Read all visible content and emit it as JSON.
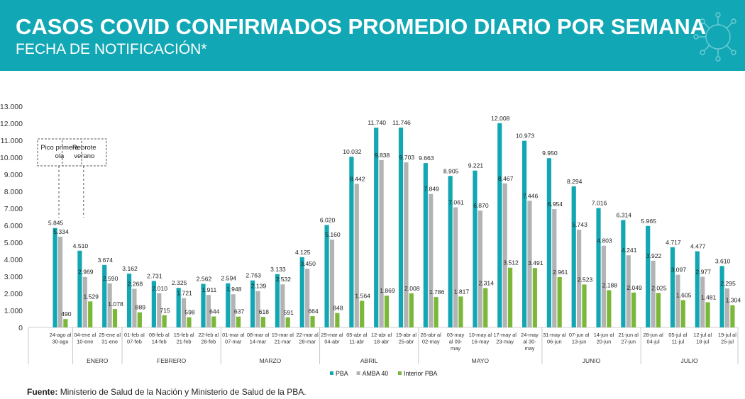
{
  "header": {
    "title": "CASOS COVID CONFIRMADOS PROMEDIO DIARIO POR SEMANA",
    "subtitle": "FECHA DE NOTIFICACIÓN*",
    "icon": "virus-icon"
  },
  "footer": {
    "label": "Fuente:",
    "text": "Ministerio de Salud de la Nación y Ministerio de Salud de la PBA."
  },
  "colors": {
    "header_bg": "#12a7b5",
    "pba": "#13a7b3",
    "amba": "#b3b3b3",
    "interior": "#7bb83a"
  },
  "chart_data": {
    "type": "bar",
    "ylim": [
      0,
      13000
    ],
    "yticks": [
      "0",
      "1.000",
      "2.000",
      "3.000",
      "4.000",
      "5.000",
      "6.000",
      "7.000",
      "8.000",
      "9.000",
      "10.000",
      "11.000",
      "12.000",
      "13.000"
    ],
    "grid": false,
    "legend_position": "bottom",
    "series": [
      {
        "name": "PBA",
        "color": "#13a7b3",
        "values": [
          5845,
          4510,
          3674,
          3162,
          2731,
          2325,
          2562,
          2594,
          2763,
          3133,
          4125,
          6020,
          10032,
          11740,
          11746,
          9663,
          8905,
          9221,
          12008,
          10973,
          9950,
          8294,
          7016,
          6314,
          5965,
          4717,
          4477,
          3610
        ],
        "labels": [
          "5.845",
          "4.510",
          "3.674",
          "3.162",
          "2.731",
          "2.325",
          "2.562",
          "2.594",
          "2.763",
          "3.133",
          "4.125",
          "6.020",
          "10.032",
          "11.740",
          "11.746",
          "9.663",
          "8.905",
          "9.221",
          "12.008",
          "10.973",
          "9.950",
          "8.294",
          "7.016",
          "6.314",
          "5.965",
          "4.717",
          "4.477",
          "3.610"
        ]
      },
      {
        "name": "AMBA 40",
        "color": "#b3b3b3",
        "values": [
          5334,
          2969,
          2590,
          2268,
          2010,
          1721,
          1911,
          1948,
          2139,
          2532,
          3450,
          5160,
          8442,
          9838,
          9703,
          7849,
          7061,
          6870,
          8467,
          7446,
          6954,
          5743,
          4803,
          4241,
          3922,
          3097,
          2977,
          2295
        ],
        "labels": [
          "5.334",
          "2.969",
          "2.590",
          "2.268",
          "2.010",
          "1.721",
          "1.911",
          "1.948",
          "2.139",
          "2.532",
          "3.450",
          "5.160",
          "8.442",
          "9.838",
          "9.703",
          "7.849",
          "7.061",
          "6.870",
          "8.467",
          "7.446",
          "6.954",
          "5.743",
          "4.803",
          "4.241",
          "3.922",
          "3.097",
          "2.977",
          "2.295"
        ]
      },
      {
        "name": "Interior PBA",
        "color": "#7bb83a",
        "values": [
          490,
          1529,
          1078,
          889,
          715,
          598,
          644,
          637,
          618,
          591,
          664,
          848,
          1564,
          1869,
          2008,
          1786,
          1817,
          2314,
          3512,
          3491,
          2961,
          2523,
          2188,
          2049,
          2025,
          1605,
          1481,
          1304
        ],
        "labels": [
          "490",
          "1.529",
          "1.078",
          "889",
          "715",
          "598",
          "644",
          "637",
          "618",
          "591",
          "664",
          "848",
          "1.564",
          "1.869",
          "2.008",
          "1.786",
          "1.817",
          "2.314",
          "3.512",
          "3.491",
          "2.961",
          "2.523",
          "2.188",
          "2.049",
          "2.025",
          "1.605",
          "1.481",
          "1.304"
        ]
      }
    ],
    "categories": [
      [
        "24-ago al",
        "30-ago"
      ],
      [
        "04-ene al",
        "10-ene"
      ],
      [
        "25-ene al",
        "31-ene"
      ],
      [
        "01-feb al",
        "07-feb"
      ],
      [
        "08-feb al",
        "14-feb"
      ],
      [
        "15-feb al",
        "21-feb"
      ],
      [
        "22-feb al",
        "28-feb"
      ],
      [
        "01-mar al",
        "07-mar"
      ],
      [
        "08-mar al",
        "14-mar"
      ],
      [
        "15-mar al",
        "21-mar"
      ],
      [
        "22-mar al",
        "28-mar"
      ],
      [
        "29-mar al",
        "04-abr"
      ],
      [
        "05-abr al",
        "11-abr"
      ],
      [
        "12-abr al",
        "18-abr"
      ],
      [
        "19-abr al",
        "25-abr"
      ],
      [
        "26-abr al",
        "02-may"
      ],
      [
        "03-may",
        "al 09-",
        "may"
      ],
      [
        "10-may al",
        "16-may"
      ],
      [
        "17-may al",
        "23-may"
      ],
      [
        "24-may",
        "al 30-",
        "may"
      ],
      [
        "31-may al",
        "06-jun"
      ],
      [
        "07-jun al",
        "13-jun"
      ],
      [
        "14-jun al",
        "20-jun"
      ],
      [
        "21-jun al",
        "27-jun"
      ],
      [
        "28-jun al",
        "04-jul"
      ],
      [
        "05-jul al",
        "11-jul"
      ],
      [
        "12-jul al",
        "18-jul"
      ],
      [
        "19-jul al",
        "25-jul"
      ]
    ],
    "months": [
      {
        "label": "ENERO",
        "first": 1,
        "last": 2
      },
      {
        "label": "FEBRERO",
        "first": 3,
        "last": 6
      },
      {
        "label": "MARZO",
        "first": 7,
        "last": 10
      },
      {
        "label": "ABRIL",
        "first": 11,
        "last": 14
      },
      {
        "label": "MAYO",
        "first": 15,
        "last": 19
      },
      {
        "label": "JUNIO",
        "first": 20,
        "last": 23
      },
      {
        "label": "JULIO",
        "first": 24,
        "last": 27
      }
    ],
    "annotations": [
      {
        "text": [
          "Pico primera",
          "ola"
        ],
        "group": 0
      },
      {
        "text": [
          "Rebrote",
          "verano"
        ],
        "group": 1
      }
    ]
  }
}
